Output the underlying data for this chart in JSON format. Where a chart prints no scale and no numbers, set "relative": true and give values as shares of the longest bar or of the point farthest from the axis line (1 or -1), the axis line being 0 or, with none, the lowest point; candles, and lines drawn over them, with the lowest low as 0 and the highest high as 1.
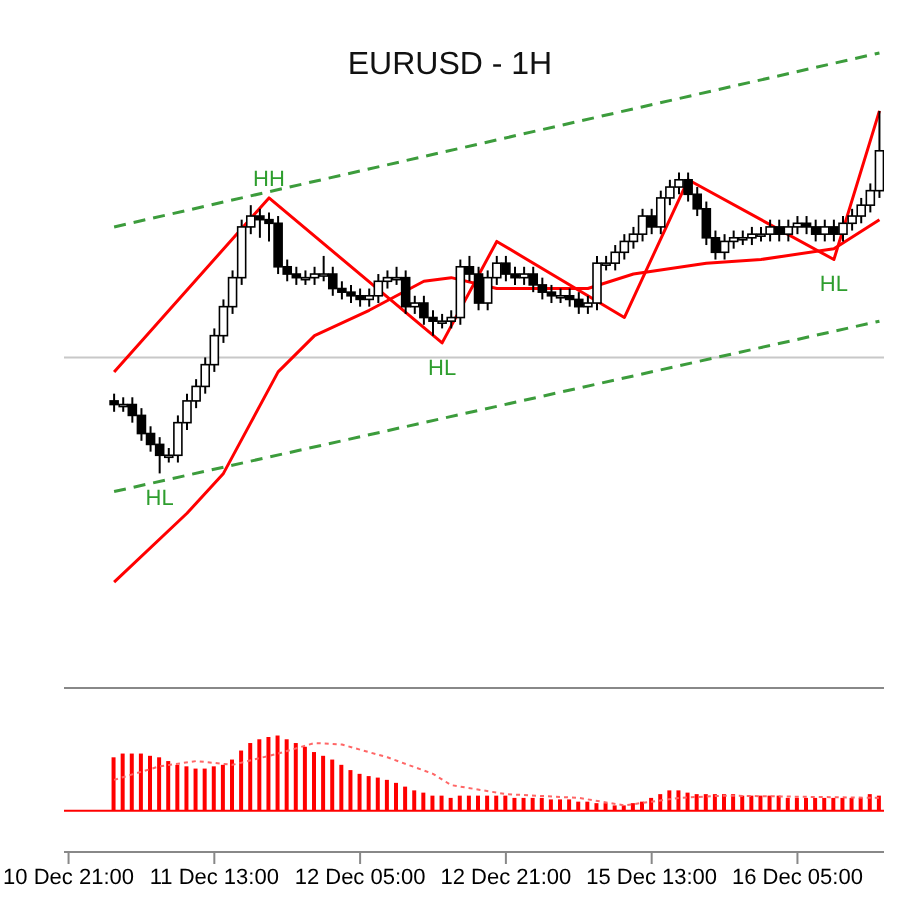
{
  "chart_data": [
    {
      "type": "candlestick",
      "title": "EURUSD - 1H",
      "relative": true,
      "tick_labels": false,
      "ohlc": [
        null,
        null,
        null,
        null,
        null,
        [
          0.2,
          0.22,
          0.17,
          0.19
        ],
        [
          0.19,
          0.21,
          0.17,
          0.19
        ],
        [
          0.19,
          0.21,
          0.14,
          0.16
        ],
        [
          0.16,
          0.18,
          0.09,
          0.11
        ],
        [
          0.11,
          0.13,
          0.06,
          0.08
        ],
        [
          0.08,
          0.1,
          0,
          0.05
        ],
        [
          0.05,
          0.07,
          0.03,
          0.05
        ],
        [
          0.05,
          0.16,
          0.03,
          0.14
        ],
        [
          0.14,
          0.22,
          0.12,
          0.2
        ],
        [
          0.2,
          0.26,
          0.18,
          0.24
        ],
        [
          0.24,
          0.32,
          0.22,
          0.3
        ],
        [
          0.3,
          0.4,
          0.28,
          0.38
        ],
        [
          0.38,
          0.48,
          0.36,
          0.46
        ],
        [
          0.46,
          0.56,
          0.44,
          0.54
        ],
        [
          0.54,
          0.7,
          0.52,
          0.68
        ],
        [
          0.68,
          0.74,
          0.66,
          0.71
        ],
        [
          0.71,
          0.73,
          0.65,
          0.7
        ],
        [
          0.7,
          0.72,
          0.64,
          0.69
        ],
        [
          0.69,
          0.71,
          0.55,
          0.57
        ],
        [
          0.57,
          0.59,
          0.53,
          0.55
        ],
        [
          0.55,
          0.57,
          0.52,
          0.54
        ],
        [
          0.54,
          0.56,
          0.52,
          0.54
        ],
        [
          0.54,
          0.57,
          0.52,
          0.55
        ],
        [
          0.55,
          0.6,
          0.53,
          0.55
        ],
        [
          0.55,
          0.57,
          0.49,
          0.51
        ],
        [
          0.51,
          0.53,
          0.48,
          0.5
        ],
        [
          0.5,
          0.52,
          0.47,
          0.49
        ],
        [
          0.49,
          0.51,
          0.46,
          0.48
        ],
        [
          0.48,
          0.51,
          0.46,
          0.49
        ],
        [
          0.49,
          0.55,
          0.47,
          0.53
        ],
        [
          0.53,
          0.56,
          0.51,
          0.54
        ],
        [
          0.54,
          0.57,
          0.52,
          0.54
        ],
        [
          0.54,
          0.56,
          0.44,
          0.46
        ],
        [
          0.46,
          0.49,
          0.44,
          0.47
        ],
        [
          0.47,
          0.49,
          0.41,
          0.43
        ],
        [
          0.43,
          0.45,
          0.38,
          0.42
        ],
        [
          0.42,
          0.44,
          0.4,
          0.42
        ],
        [
          0.42,
          0.45,
          0.4,
          0.43
        ],
        [
          0.43,
          0.59,
          0.41,
          0.57
        ],
        [
          0.57,
          0.6,
          0.53,
          0.55
        ],
        [
          0.55,
          0.57,
          0.45,
          0.47
        ],
        [
          0.47,
          0.56,
          0.45,
          0.54
        ],
        [
          0.54,
          0.6,
          0.52,
          0.58
        ],
        [
          0.58,
          0.6,
          0.53,
          0.55
        ],
        [
          0.55,
          0.57,
          0.52,
          0.54
        ],
        [
          0.54,
          0.57,
          0.52,
          0.55
        ],
        [
          0.55,
          0.57,
          0.5,
          0.52
        ],
        [
          0.52,
          0.54,
          0.48,
          0.5
        ],
        [
          0.5,
          0.52,
          0.47,
          0.49
        ],
        [
          0.49,
          0.51,
          0.47,
          0.49
        ],
        [
          0.49,
          0.51,
          0.46,
          0.48
        ],
        [
          0.48,
          0.5,
          0.44,
          0.46
        ],
        [
          0.46,
          0.49,
          0.44,
          0.47
        ],
        [
          0.47,
          0.6,
          0.45,
          0.58
        ],
        [
          0.58,
          0.6,
          0.56,
          0.58
        ],
        [
          0.58,
          0.63,
          0.56,
          0.61
        ],
        [
          0.61,
          0.66,
          0.59,
          0.64
        ],
        [
          0.64,
          0.68,
          0.62,
          0.66
        ],
        [
          0.66,
          0.73,
          0.64,
          0.71
        ],
        [
          0.71,
          0.73,
          0.66,
          0.68
        ],
        [
          0.68,
          0.78,
          0.66,
          0.76
        ],
        [
          0.76,
          0.81,
          0.74,
          0.79
        ],
        [
          0.79,
          0.83,
          0.77,
          0.81
        ],
        [
          0.81,
          0.83,
          0.75,
          0.77
        ],
        [
          0.77,
          0.79,
          0.71,
          0.73
        ],
        [
          0.73,
          0.75,
          0.63,
          0.65
        ],
        [
          0.65,
          0.67,
          0.59,
          0.61
        ],
        [
          0.61,
          0.66,
          0.59,
          0.64
        ],
        [
          0.64,
          0.67,
          0.62,
          0.65
        ],
        [
          0.65,
          0.67,
          0.63,
          0.65
        ],
        [
          0.65,
          0.68,
          0.63,
          0.66
        ],
        [
          0.66,
          0.68,
          0.64,
          0.66
        ],
        [
          0.66,
          0.7,
          0.64,
          0.68
        ],
        [
          0.68,
          0.7,
          0.64,
          0.66
        ],
        [
          0.66,
          0.7,
          0.64,
          0.68
        ],
        [
          0.68,
          0.71,
          0.66,
          0.69
        ],
        [
          0.69,
          0.71,
          0.66,
          0.68
        ],
        [
          0.68,
          0.7,
          0.64,
          0.66
        ],
        [
          0.66,
          0.7,
          0.64,
          0.68
        ],
        [
          0.68,
          0.7,
          0.64,
          0.66
        ],
        [
          0.66,
          0.71,
          0.64,
          0.69
        ],
        [
          0.69,
          0.73,
          0.67,
          0.71
        ],
        [
          0.71,
          0.76,
          0.69,
          0.74
        ],
        [
          0.74,
          0.8,
          0.72,
          0.78
        ],
        [
          0.78,
          1,
          0.76,
          0.89
        ]
      ],
      "series": [
        {
          "type": "line",
          "color": "#ff0000",
          "values": [
            null,
            null,
            null,
            null,
            null,
            0.28,
            null,
            null,
            null,
            null,
            null,
            null,
            null,
            null,
            null,
            null,
            null,
            null,
            null,
            null,
            null,
            null,
            0.76,
            null,
            null,
            null,
            null,
            null,
            null,
            null,
            null,
            null,
            null,
            null,
            null,
            null,
            null,
            null,
            null,
            null,
            null,
            0.36,
            null,
            null,
            null,
            null,
            null,
            0.64,
            null,
            null,
            null,
            null,
            null,
            null,
            null,
            null,
            null,
            null,
            null,
            null,
            null,
            0.43,
            null,
            null,
            null,
            null,
            null,
            null,
            0.81,
            null,
            null,
            null,
            null,
            null,
            null,
            null,
            null,
            null,
            null,
            null,
            null,
            null,
            null,
            null,
            0.59,
            null,
            null,
            null,
            null,
            1
          ]
        },
        {
          "type": "line",
          "color": "#ff0000",
          "values": [
            null,
            null,
            null,
            null,
            null,
            -0.3,
            null,
            null,
            null,
            null,
            null,
            null,
            null,
            -0.11,
            null,
            null,
            null,
            0,
            null,
            null,
            0.14,
            null,
            null,
            0.28,
            null,
            null,
            null,
            0.38,
            null,
            null,
            null,
            null,
            null,
            0.45,
            null,
            null,
            null,
            null,
            null,
            0.53,
            null,
            null,
            0.54,
            null,
            null,
            null,
            null,
            0.51,
            null,
            null,
            null,
            null,
            0.51,
            null,
            null,
            null,
            null,
            0.51,
            null,
            null,
            null,
            null,
            0.55,
            null,
            null,
            null,
            null,
            null,
            null,
            null,
            0.58,
            null,
            null,
            null,
            null,
            null,
            0.59,
            null,
            null,
            null,
            null,
            null,
            null,
            null,
            0.62,
            null,
            null,
            null,
            null,
            0.7
          ]
        },
        {
          "type": "line",
          "color": "#3c9c3c",
          "line_style": "dashed",
          "values": [
            null,
            null,
            null,
            null,
            null,
            0.68,
            null,
            null,
            null,
            null,
            null,
            null,
            null,
            null,
            null,
            null,
            null,
            null,
            null,
            null,
            null,
            null,
            null,
            null,
            null,
            null,
            null,
            null,
            null,
            null,
            null,
            null,
            null,
            null,
            null,
            null,
            null,
            null,
            null,
            null,
            null,
            null,
            null,
            null,
            null,
            null,
            null,
            null,
            null,
            null,
            null,
            null,
            null,
            null,
            null,
            null,
            null,
            null,
            null,
            null,
            null,
            null,
            null,
            null,
            null,
            null,
            null,
            null,
            null,
            null,
            null,
            null,
            null,
            null,
            null,
            null,
            null,
            null,
            null,
            null,
            null,
            null,
            null,
            null,
            null,
            null,
            null,
            null,
            null,
            1.16
          ]
        },
        {
          "type": "line",
          "color": "#3c9c3c",
          "line_style": "dashed",
          "values": [
            null,
            null,
            null,
            null,
            null,
            -0.05,
            null,
            null,
            null,
            null,
            null,
            null,
            null,
            null,
            null,
            null,
            null,
            null,
            null,
            null,
            null,
            null,
            null,
            null,
            null,
            null,
            null,
            null,
            null,
            null,
            null,
            null,
            null,
            null,
            null,
            null,
            null,
            null,
            null,
            null,
            null,
            null,
            null,
            null,
            null,
            null,
            null,
            null,
            null,
            null,
            null,
            null,
            null,
            null,
            null,
            null,
            null,
            null,
            null,
            null,
            null,
            null,
            null,
            null,
            null,
            null,
            null,
            null,
            null,
            null,
            null,
            null,
            null,
            null,
            null,
            null,
            null,
            null,
            null,
            null,
            null,
            null,
            null,
            null,
            null,
            null,
            null,
            null,
            null,
            0.42
          ]
        }
      ],
      "ref_lines": [
        {
          "axis": "y",
          "value": 0.32,
          "color": "#c8c8c8"
        }
      ],
      "annotations": [
        {
          "text": "HH",
          "y": 0.76
        },
        {
          "text": "HL",
          "y": 0
        },
        {
          "text": "HL",
          "y": 0.36
        },
        {
          "text": "HL",
          "y": 0.59
        }
      ]
    },
    {
      "type": "bar",
      "relative": true,
      "tick_labels": "x",
      "categories": [
        "10 Dec 21:00",
        null,
        null,
        null,
        null,
        null,
        null,
        null,
        null,
        null,
        null,
        null,
        null,
        null,
        null,
        null,
        "11 Dec 13:00",
        null,
        null,
        null,
        null,
        null,
        null,
        null,
        null,
        null,
        null,
        null,
        null,
        null,
        null,
        null,
        "12 Dec 05:00",
        null,
        null,
        null,
        null,
        null,
        null,
        null,
        null,
        null,
        null,
        null,
        null,
        null,
        null,
        null,
        "12 Dec 21:00",
        null,
        null,
        null,
        null,
        null,
        null,
        null,
        null,
        null,
        null,
        null,
        null,
        null,
        null,
        null,
        "15 Dec 13:00",
        null,
        null,
        null,
        null,
        null,
        null,
        null,
        null,
        null,
        null,
        null,
        null,
        null,
        null,
        null,
        "16 Dec 05:00",
        null,
        null,
        null,
        null,
        null,
        null,
        null,
        null,
        null
      ],
      "series": [
        {
          "type": "bar",
          "color": "#ff0000",
          "values": [
            null,
            null,
            null,
            null,
            null,
            0.71,
            0.76,
            0.76,
            0.76,
            0.73,
            0.71,
            0.66,
            0.61,
            0.59,
            0.56,
            0.56,
            0.59,
            0.61,
            0.68,
            0.8,
            0.9,
            0.95,
            0.98,
            1,
            0.95,
            0.9,
            0.85,
            0.78,
            0.73,
            0.68,
            0.61,
            0.54,
            0.49,
            0.46,
            0.44,
            0.41,
            0.37,
            0.32,
            0.27,
            0.24,
            0.2,
            0.2,
            0.17,
            0.2,
            0.2,
            0.2,
            0.2,
            0.2,
            0.2,
            0.17,
            0.17,
            0.17,
            0.17,
            0.15,
            0.15,
            0.15,
            0.12,
            0.12,
            0.1,
            0.1,
            0.07,
            0.07,
            0.1,
            0.12,
            0.17,
            0.22,
            0.27,
            0.27,
            0.24,
            0.22,
            0.22,
            0.22,
            0.22,
            0.22,
            0.2,
            0.2,
            0.2,
            0.2,
            0.2,
            0.17,
            0.17,
            0.17,
            0.17,
            0.17,
            0.17,
            0.17,
            0.17,
            0.17,
            0.22,
            0.2
          ]
        },
        {
          "type": "line",
          "color": "#ff6666",
          "line_style": "dotted",
          "values": [
            null,
            null,
            null,
            null,
            null,
            0.41,
            null,
            null,
            null,
            null,
            0.59,
            null,
            null,
            null,
            0.66,
            null,
            null,
            null,
            0.61,
            null,
            null,
            null,
            null,
            0.76,
            null,
            null,
            null,
            0.9,
            null,
            null,
            0.88,
            null,
            null,
            null,
            null,
            0.71,
            null,
            null,
            null,
            null,
            0.49,
            null,
            0.34,
            null,
            null,
            null,
            null,
            null,
            0.22,
            null,
            null,
            null,
            null,
            null,
            null,
            null,
            0.17,
            null,
            null,
            null,
            null,
            0.07,
            null,
            null,
            null,
            null,
            null,
            0.17,
            null,
            null,
            null,
            null,
            0.2,
            null,
            null,
            null,
            null,
            null,
            null,
            null,
            null,
            null,
            null,
            null,
            null,
            null,
            null,
            null,
            null,
            0.17
          ]
        }
      ]
    }
  ]
}
